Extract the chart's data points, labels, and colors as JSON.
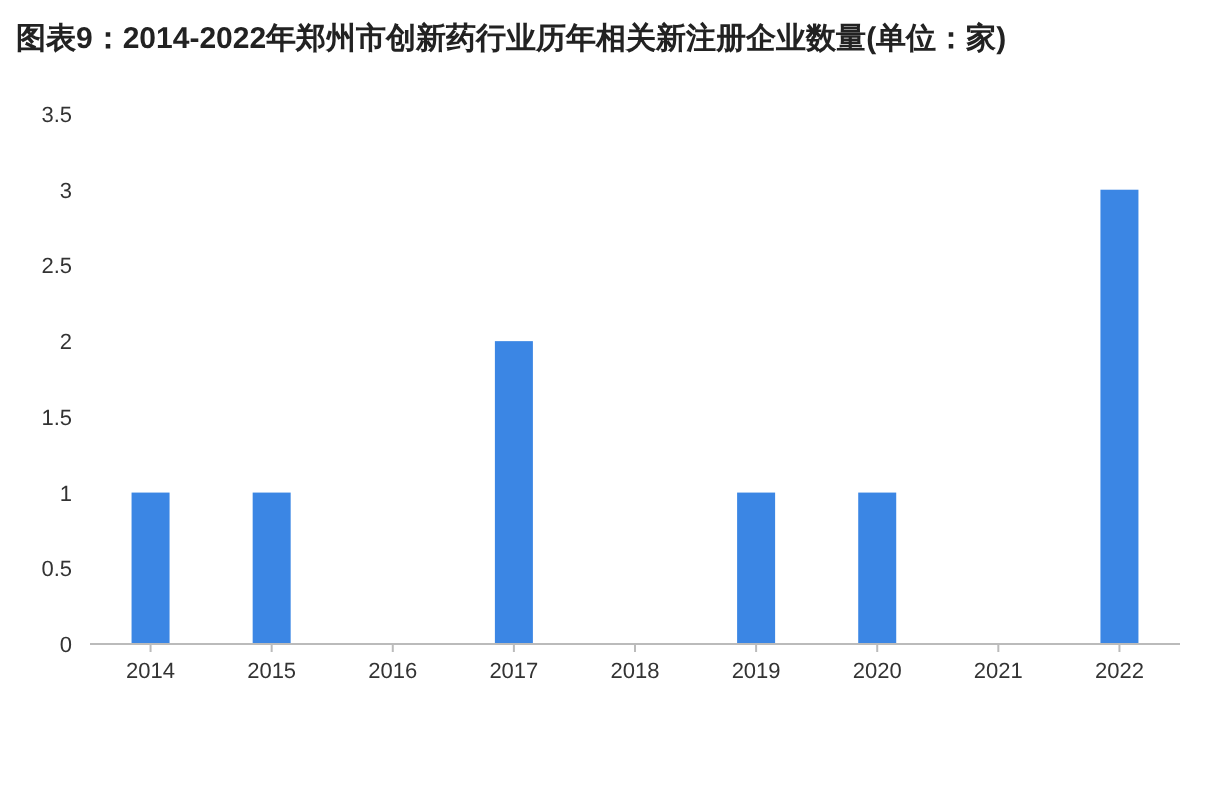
{
  "chart_data": {
    "type": "bar",
    "title": "图表9：2014-2022年郑州市创新药行业历年相关新注册企业数量(单位：家)",
    "categories": [
      "2014",
      "2015",
      "2016",
      "2017",
      "2018",
      "2019",
      "2020",
      "2021",
      "2022"
    ],
    "values": [
      1,
      1,
      0,
      2,
      0,
      1,
      1,
      0,
      3
    ],
    "color": "#3b86e4",
    "ylim": [
      0,
      3.5
    ],
    "yticks": [
      0,
      0.5,
      1,
      1.5,
      2,
      2.5,
      3,
      3.5
    ]
  }
}
